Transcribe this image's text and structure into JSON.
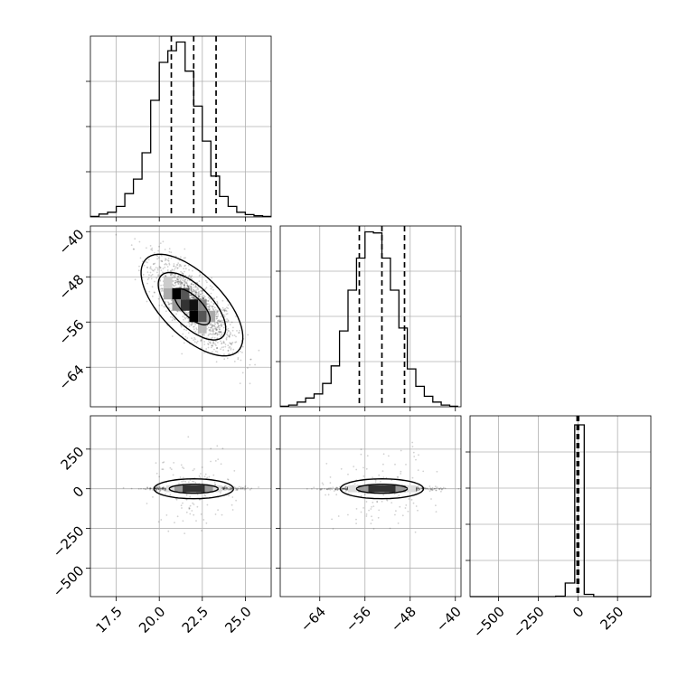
{
  "chart_data": [
    {
      "type": "histogram",
      "panel": "marginal-p1",
      "bin_edges": [
        16.0,
        16.5,
        17.0,
        17.5,
        18.0,
        18.5,
        19.0,
        19.5,
        20.0,
        20.5,
        21.0,
        21.5,
        22.0,
        22.5,
        23.0,
        23.5,
        24.0,
        24.5,
        25.0,
        25.5,
        26.0,
        26.5
      ],
      "counts": [
        1,
        5,
        8,
        18,
        40,
        65,
        110,
        200,
        265,
        285,
        300,
        250,
        190,
        130,
        70,
        35,
        18,
        8,
        4,
        2,
        1
      ],
      "quantile_lines": [
        20.7,
        22.0,
        23.3
      ],
      "xlim": [
        16.0,
        26.5
      ],
      "ylim": [
        0,
        310
      ],
      "x_ticks": [
        17.5,
        20.0,
        22.5,
        25.0
      ],
      "grid": true
    },
    {
      "type": "scatter",
      "panel": "joint-p1-p2",
      "xlim": [
        16.0,
        26.5
      ],
      "ylim": [
        -71,
        -39
      ],
      "x_ticks": [
        17.5,
        20.0,
        22.5,
        25.0
      ],
      "y_ticks": [
        -40,
        -48,
        -56,
        -64
      ],
      "center": [
        22.0,
        -53.0
      ],
      "correlation": -0.8,
      "grid": true
    },
    {
      "type": "histogram",
      "panel": "marginal-p2",
      "bin_edges": [
        -71,
        -69.5,
        -68,
        -66.5,
        -65,
        -63.5,
        -62,
        -60.5,
        -59,
        -57.5,
        -56,
        -54.5,
        -53,
        -51.5,
        -50,
        -48.5,
        -47,
        -45.5,
        -44,
        -42.5,
        -41,
        -39.5
      ],
      "counts": [
        1,
        3,
        8,
        15,
        22,
        40,
        70,
        130,
        200,
        255,
        300,
        298,
        255,
        200,
        135,
        65,
        35,
        18,
        8,
        3,
        1
      ],
      "quantile_lines": [
        -57.0,
        -53.0,
        -49.0
      ],
      "xlim": [
        -71,
        -39
      ],
      "ylim": [
        0,
        310
      ],
      "x_ticks": [
        -64,
        -56,
        -48,
        -40
      ],
      "grid": true
    },
    {
      "type": "scatter",
      "panel": "joint-p1-p3",
      "xlim": [
        16.0,
        26.5
      ],
      "ylim": [
        -680,
        460
      ],
      "x_ticks": [
        17.5,
        20.0,
        22.5,
        25.0
      ],
      "y_ticks": [
        250,
        0,
        -250,
        -500
      ],
      "center": [
        22.0,
        0
      ],
      "grid": true
    },
    {
      "type": "scatter",
      "panel": "joint-p2-p3",
      "xlim": [
        -71,
        -39
      ],
      "ylim": [
        -680,
        460
      ],
      "x_ticks": [
        -64,
        -56,
        -48,
        -40
      ],
      "y_ticks": [
        250,
        0,
        -250,
        -500
      ],
      "center": [
        -53.0,
        0
      ],
      "grid": true
    },
    {
      "type": "histogram",
      "panel": "marginal-p3",
      "bin_edges": [
        -680,
        -620,
        -560,
        -500,
        -440,
        -380,
        -320,
        -260,
        -200,
        -140,
        -80,
        -20,
        40,
        100,
        160,
        220,
        280,
        340,
        400,
        460
      ],
      "counts": [
        0,
        0,
        0,
        0,
        0,
        0,
        0,
        0,
        0,
        2,
        60,
        760,
        10,
        0,
        0,
        0,
        0,
        0,
        0
      ],
      "quantile_lines": [
        -5,
        0,
        5
      ],
      "xlim": [
        -680,
        460
      ],
      "ylim": [
        0,
        800
      ],
      "x_ticks": [
        -500,
        -250,
        0,
        250
      ],
      "grid": true
    }
  ],
  "x_tick_labels": {
    "p1": [
      "17.5",
      "20.0",
      "22.5",
      "25.0"
    ],
    "p2": [
      "−64",
      "−56",
      "−48",
      "−40"
    ],
    "p3": [
      "−500",
      "−250",
      "0",
      "250"
    ]
  },
  "y_tick_labels": {
    "p2": [
      "−40",
      "−48",
      "−56",
      "−64"
    ],
    "p3": [
      "250",
      "0",
      "−250",
      "−500"
    ]
  }
}
